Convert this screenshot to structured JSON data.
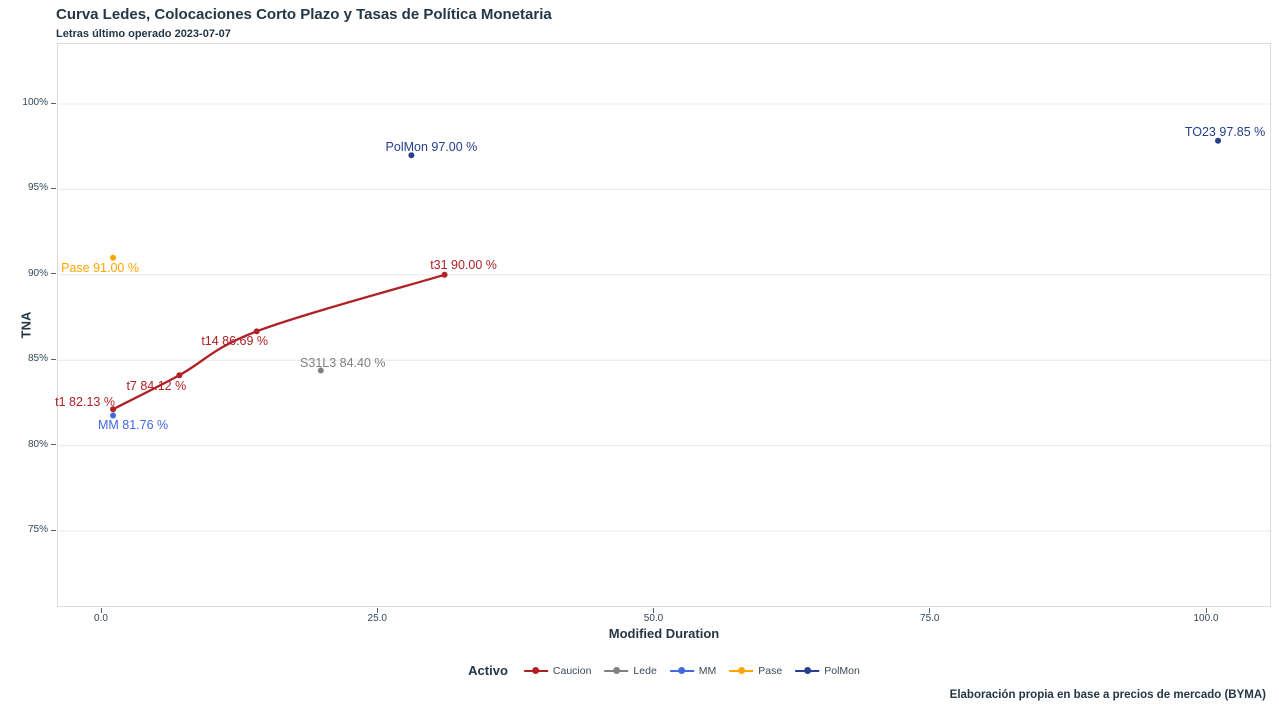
{
  "title": "Curva Ledes, Colocaciones Corto Plazo y Tasas de Política Monetaria",
  "subtitle": "Letras último operado 2023-07-07",
  "caption": "Elaboración propia en base a precios de mercado (BYMA)",
  "axes": {
    "x": {
      "label": "Modified Duration",
      "ticks": [
        0,
        25,
        50,
        75,
        100
      ],
      "tick_labels": [
        "0.0",
        "25.0",
        "50.0",
        "75.0",
        "100.0"
      ]
    },
    "y": {
      "label": "TNA",
      "ticks": [
        100,
        95,
        90,
        85,
        80,
        75
      ],
      "tick_labels": [
        "100%",
        "95%",
        "90%",
        "85%",
        "80%",
        "75%"
      ]
    }
  },
  "legend": {
    "title": "Activo",
    "items": [
      {
        "label": "Caucion",
        "color": "#b02126"
      },
      {
        "label": "Lede",
        "color": "#808080"
      },
      {
        "label": "MM",
        "color": "#4169e1"
      },
      {
        "label": "Pase",
        "color": "#ffa500"
      },
      {
        "label": "PolMon",
        "color": "#27408b"
      }
    ]
  },
  "chart_data": {
    "type": "scatter",
    "title": "Curva Ledes, Colocaciones Corto Plazo y Tasas de Política Monetaria",
    "subtitle": "Letras último operado 2023-07-07",
    "xlabel": "Modified Duration",
    "ylabel": "TNA",
    "xlim": [
      -4,
      106
    ],
    "ylim": [
      70.5,
      103.5
    ],
    "x_ticks": [
      0,
      25,
      50,
      75,
      100
    ],
    "y_ticks": [
      100,
      95,
      90,
      85,
      80,
      75
    ],
    "grid": "horizontal-major-only",
    "legend_position": "bottom-center",
    "series": [
      {
        "name": "Caucion",
        "color": "#b02126",
        "geom": "line+points",
        "points": [
          {
            "name": "t1",
            "x": 1,
            "y": 82.13,
            "label": "t1 82.13 %"
          },
          {
            "name": "t7",
            "x": 7,
            "y": 84.12,
            "label": "t7 84.12 %"
          },
          {
            "name": "t14",
            "x": 14,
            "y": 86.69,
            "label": "t14 86.69 %"
          },
          {
            "name": "t31",
            "x": 31,
            "y": 90.0,
            "label": "t31 90.00 %"
          }
        ]
      },
      {
        "name": "Lede",
        "color": "#808080",
        "geom": "points",
        "points": [
          {
            "name": "S31L3",
            "x": 19.8,
            "y": 84.4,
            "label": "S31L3 84.40 %"
          }
        ]
      },
      {
        "name": "MM",
        "color": "#4169e1",
        "geom": "points",
        "points": [
          {
            "name": "MM",
            "x": 1,
            "y": 81.76,
            "label": "MM 81.76 %"
          }
        ]
      },
      {
        "name": "Pase",
        "color": "#ffa500",
        "geom": "points",
        "points": [
          {
            "name": "Pase",
            "x": 1,
            "y": 91.0,
            "label": "Pase 91.00 %"
          }
        ]
      },
      {
        "name": "PolMon",
        "color": "#27408b",
        "geom": "points",
        "points": [
          {
            "name": "PolMon",
            "x": 28,
            "y": 97.0,
            "label": "PolMon 97.00 %"
          },
          {
            "name": "TO23",
            "x": 101,
            "y": 97.85,
            "label": "TO23 97.85 %"
          }
        ]
      }
    ]
  }
}
